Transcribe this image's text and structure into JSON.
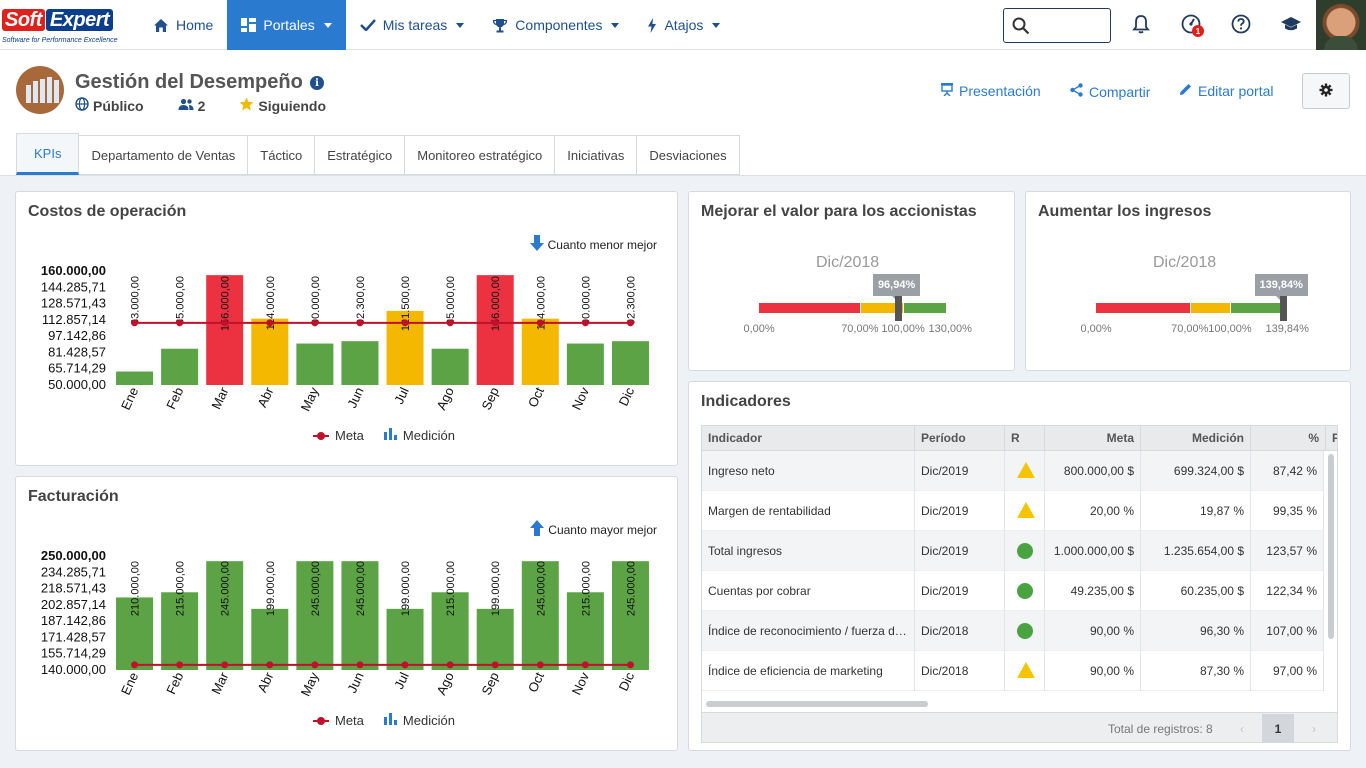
{
  "app": {
    "logo_soft": "Soft",
    "logo_expert": "Expert",
    "logo_tagline": "Software for Performance Excellence"
  },
  "nav": {
    "home": "Home",
    "portales": "Portales",
    "mis_tareas": "Mis tareas",
    "componentes": "Componentes",
    "atajos": "Atajos",
    "notification_badge": "1",
    "search_placeholder": ""
  },
  "portal": {
    "title": "Gestión del Desempeño",
    "visibility": "Público",
    "members": "2",
    "following": "Siguiendo",
    "actions": {
      "presentacion": "Presentación",
      "compartir": "Compartir",
      "editar": "Editar portal"
    },
    "tabs": [
      "KPIs",
      "Departamento de Ventas",
      "Táctico",
      "Estratégico",
      "Monitoreo estratégico",
      "Iniciativas",
      "Desviaciones"
    ]
  },
  "colors": {
    "red": "#ec3240",
    "yellow": "#f5b800",
    "green": "#5ba345",
    "meta_line": "#c0102b",
    "accent": "#2a7bd0"
  },
  "costos": {
    "title": "Costos de operación",
    "hint": "Cuanto menor mejor",
    "legend_meta": "Meta",
    "legend_medicion": "Medición",
    "chart_data": {
      "type": "bar",
      "categories": [
        "Ene",
        "Feb",
        "Mar",
        "Abr",
        "May",
        "Jun",
        "Jul",
        "Ago",
        "Sep",
        "Oct",
        "Nov",
        "Dic"
      ],
      "series": [
        {
          "name": "Medición",
          "values": [
            63000,
            85000,
            156000,
            114000,
            90000,
            92300,
            121500,
            85000,
            156000,
            114000,
            90000,
            92300
          ],
          "labels": [
            "63.000,00",
            "85.000,00",
            "156.000,00",
            "114.000,00",
            "90.000,00",
            "92.300,00",
            "121.500,00",
            "85.000,00",
            "156.000,00",
            "114.000,00",
            "90.000,00",
            "92.300,00"
          ],
          "status": [
            "green",
            "green",
            "red",
            "yellow",
            "green",
            "green",
            "yellow",
            "green",
            "red",
            "yellow",
            "green",
            "green"
          ]
        },
        {
          "name": "Meta",
          "values": [
            110000,
            110000,
            110000,
            110000,
            110000,
            110000,
            110000,
            110000,
            110000,
            110000,
            110000,
            110000
          ]
        }
      ],
      "y_ticks": [
        "160.000,00",
        "144.285,71",
        "128.571,43",
        "112.857,14",
        "97.142,86",
        "81.428,57",
        "65.714,29",
        "50.000,00"
      ],
      "ylim": [
        50000,
        160000
      ]
    }
  },
  "facturacion": {
    "title": "Facturación",
    "hint": "Cuanto mayor mejor",
    "legend_meta": "Meta",
    "legend_medicion": "Medición",
    "chart_data": {
      "type": "bar",
      "categories": [
        "Ene",
        "Feb",
        "Mar",
        "Abr",
        "May",
        "Jun",
        "Jul",
        "Ago",
        "Sep",
        "Oct",
        "Nov",
        "Dic"
      ],
      "series": [
        {
          "name": "Medición",
          "values": [
            210000,
            215000,
            245000,
            199000,
            245000,
            245000,
            199000,
            215000,
            199000,
            245000,
            215000,
            245000
          ],
          "labels": [
            "210.000,00",
            "215.000,00",
            "245.000,00",
            "199.000,00",
            "245.000,00",
            "245.000,00",
            "199.000,00",
            "215.000,00",
            "199.000,00",
            "245.000,00",
            "215.000,00",
            "245.000,00"
          ],
          "status": [
            "green",
            "green",
            "green",
            "green",
            "green",
            "green",
            "green",
            "green",
            "green",
            "green",
            "green",
            "green"
          ]
        },
        {
          "name": "Meta",
          "values": [
            145000,
            145000,
            145000,
            145000,
            145000,
            145000,
            145000,
            145000,
            145000,
            145000,
            145000,
            145000
          ]
        }
      ],
      "y_ticks": [
        "250.000,00",
        "234.285,71",
        "218.571,43",
        "202.857,14",
        "187.142,86",
        "171.428,57",
        "155.714,29",
        "140.000,00"
      ],
      "ylim": [
        140000,
        250000
      ]
    }
  },
  "gauge_accionistas": {
    "title": "Mejorar el valor para los accionistas",
    "period": "Dic/2018",
    "value_label": "96,94%",
    "value": 96.94,
    "range": [
      0,
      130
    ],
    "bands": [
      {
        "to": 70,
        "color": "red"
      },
      {
        "to": 100,
        "color": "yellow"
      },
      {
        "to": 130,
        "color": "green"
      }
    ],
    "labels": [
      "0,00%",
      "70,00%",
      "100,00%",
      "130,00%"
    ]
  },
  "gauge_ingresos": {
    "title": "Aumentar los ingresos",
    "period": "Dic/2018",
    "value_label": "139,84%",
    "value": 139.84,
    "range": [
      0,
      139.84
    ],
    "bands": [
      {
        "to": 70,
        "color": "red"
      },
      {
        "to": 100,
        "color": "yellow"
      },
      {
        "to": 139.84,
        "color": "green"
      }
    ],
    "labels": [
      "0,00%",
      "70,00%",
      "100,00%",
      "139,84%"
    ]
  },
  "indicadores": {
    "title": "Indicadores",
    "columns": [
      "Indicador",
      "Período",
      "R",
      "Meta",
      "Medición",
      "%",
      "F"
    ],
    "rows": [
      {
        "indicador": "Ingreso neto",
        "periodo": "Dic/2019",
        "status": "warning",
        "meta": "800.000,00 $",
        "medicion": "699.324,00 $",
        "pct": "87,42 %"
      },
      {
        "indicador": "Margen de rentabilidad",
        "periodo": "Dic/2019",
        "status": "warning",
        "meta": "20,00 %",
        "medicion": "19,87 %",
        "pct": "99,35 %"
      },
      {
        "indicador": "Total ingresos",
        "periodo": "Dic/2019",
        "status": "ok",
        "meta": "1.000.000,00 $",
        "medicion": "1.235.654,00 $",
        "pct": "123,57 %"
      },
      {
        "indicador": "Cuentas por cobrar",
        "periodo": "Dic/2019",
        "status": "ok",
        "meta": "49.235,00 $",
        "medicion": "60.235,00 $",
        "pct": "122,34 %"
      },
      {
        "indicador": "Índice de reconocimiento / fuerza de marca",
        "periodo": "Dic/2018",
        "status": "ok",
        "meta": "90,00 %",
        "medicion": "96,30 %",
        "pct": "107,00 %"
      },
      {
        "indicador": "Índice de eficiencia de marketing",
        "periodo": "Dic/2018",
        "status": "warning",
        "meta": "90,00 %",
        "medicion": "87,30 %",
        "pct": "97,00 %"
      }
    ],
    "total_label": "Total de registros: 8",
    "page": "1"
  }
}
